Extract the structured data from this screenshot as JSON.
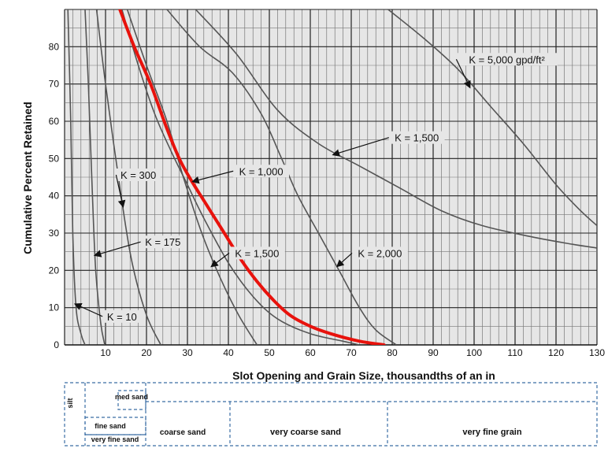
{
  "chart_data": {
    "type": "line",
    "title": "",
    "xlabel": "Slot Opening and Grain Size, thousandths of an in",
    "ylabel": "Cumulative Percent Retained",
    "xlim": [
      0,
      130
    ],
    "ylim": [
      0,
      90
    ],
    "x_ticks": [
      "10",
      "20",
      "30",
      "40",
      "50",
      "60",
      "70",
      "80",
      "90",
      "100",
      "110",
      "120",
      "130"
    ],
    "y_ticks": [
      "0",
      "10",
      "20",
      "30",
      "40",
      "50",
      "60",
      "70",
      "80"
    ],
    "grid": true,
    "colors": {
      "curve": "#555555",
      "highlight": "#e8120c",
      "grid": "#333333"
    },
    "series": [
      {
        "name": "K = 10",
        "points": [
          [
            0.8,
            90
          ],
          [
            1.5,
            60
          ],
          [
            2,
            30
          ],
          [
            2.8,
            10
          ],
          [
            4,
            3
          ],
          [
            5,
            0
          ]
        ]
      },
      {
        "name": "K = 175",
        "points": [
          [
            5,
            90
          ],
          [
            5.8,
            70
          ],
          [
            6.8,
            40
          ],
          [
            7.6,
            20
          ],
          [
            8.8,
            6
          ],
          [
            9.8,
            0
          ]
        ]
      },
      {
        "name": "K = 300",
        "points": [
          [
            7.8,
            90
          ],
          [
            10,
            70
          ],
          [
            13.8,
            40
          ],
          [
            16.5,
            22
          ],
          [
            20,
            8
          ],
          [
            23.5,
            0
          ]
        ]
      },
      {
        "name": "K = 1,000",
        "points": [
          [
            14,
            90
          ],
          [
            18,
            75
          ],
          [
            22,
            62
          ],
          [
            26,
            52
          ],
          [
            30,
            43
          ],
          [
            34,
            34
          ],
          [
            40,
            22
          ],
          [
            46,
            13
          ],
          [
            52,
            7
          ],
          [
            60,
            3
          ],
          [
            68,
            1
          ],
          [
            72,
            0
          ]
        ]
      },
      {
        "name": "K = 1,500",
        "points": [
          [
            15.3,
            90
          ],
          [
            20,
            75
          ],
          [
            25,
            60
          ],
          [
            29,
            45
          ],
          [
            33.5,
            30
          ],
          [
            38,
            18
          ],
          [
            42.5,
            8
          ],
          [
            47,
            0
          ]
        ]
      },
      {
        "name": "K = 2,000",
        "points": [
          [
            25,
            90
          ],
          [
            33,
            80
          ],
          [
            41,
            73
          ],
          [
            48,
            62
          ],
          [
            53,
            50
          ],
          [
            57,
            40
          ],
          [
            62,
            30
          ],
          [
            67,
            20
          ],
          [
            72,
            10
          ],
          [
            76,
            4
          ],
          [
            81,
            0
          ]
        ]
      },
      {
        "name": "K = 1,500 (upper)",
        "points": [
          [
            32,
            90
          ],
          [
            42,
            78
          ],
          [
            52,
            63
          ],
          [
            62,
            54
          ],
          [
            72,
            48
          ],
          [
            82,
            42
          ],
          [
            92,
            36
          ],
          [
            102,
            32
          ],
          [
            114,
            29
          ],
          [
            124,
            27
          ],
          [
            130,
            26
          ]
        ]
      },
      {
        "name": "K = 5,000 gpd/ft²",
        "points": [
          [
            79,
            90
          ],
          [
            88,
            82
          ],
          [
            96,
            74
          ],
          [
            104,
            64
          ],
          [
            112,
            54
          ],
          [
            120,
            43
          ],
          [
            126,
            36
          ],
          [
            130,
            32
          ]
        ]
      }
    ],
    "highlight_series": {
      "name": "",
      "points": [
        [
          13.5,
          90
        ],
        [
          17,
          80
        ],
        [
          21,
          70
        ],
        [
          25,
          58
        ],
        [
          28,
          50
        ],
        [
          31,
          44
        ],
        [
          35,
          37
        ],
        [
          39,
          30
        ],
        [
          43,
          23
        ],
        [
          47,
          17
        ],
        [
          51,
          12
        ],
        [
          55,
          8
        ],
        [
          60,
          5
        ],
        [
          65,
          3
        ],
        [
          72,
          1
        ],
        [
          78,
          0
        ]
      ]
    },
    "annotations": [
      {
        "text": "K = 10",
        "x": 14,
        "y": 7,
        "point": [
          2.5,
          11
        ]
      },
      {
        "text": "K = 175",
        "x": 24,
        "y": 27,
        "point": [
          7.3,
          24
        ]
      },
      {
        "text": "K = 300",
        "x": 18,
        "y": 45,
        "point": [
          14.3,
          37
        ]
      },
      {
        "text": "K = 1,000",
        "x": 48,
        "y": 46,
        "point": [
          31.2,
          43.8
        ]
      },
      {
        "text": "K = 1,500",
        "x": 47,
        "y": 24,
        "point": [
          35.8,
          21
        ]
      },
      {
        "text": "K = 2,000",
        "x": 77,
        "y": 24,
        "point": [
          66.5,
          21
        ]
      },
      {
        "text": "K = 1,500",
        "x": 86,
        "y": 55,
        "point": [
          65.5,
          51
        ]
      },
      {
        "text": "K = 5,000 gpd/ft²",
        "x": 108,
        "y": 76,
        "point": [
          99,
          69
        ]
      }
    ],
    "grain_scale": [
      {
        "label": "silt"
      },
      {
        "label": "fine sand"
      },
      {
        "label": "very fine sand"
      },
      {
        "label": "med sand"
      },
      {
        "label": "coarse sand"
      },
      {
        "label": "very coarse sand"
      },
      {
        "label": "very fine grain"
      }
    ]
  }
}
